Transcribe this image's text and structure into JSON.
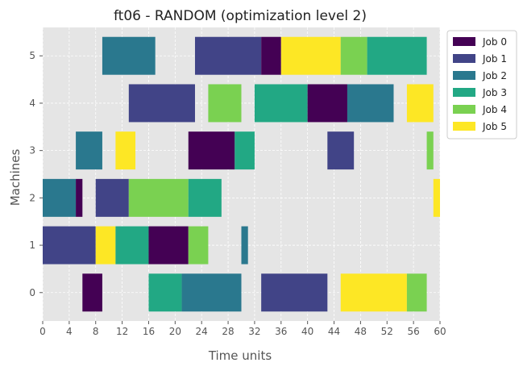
{
  "chart_data": {
    "type": "gantt",
    "title": "ft06 - RANDOM (optimization level 2)",
    "xlabel": "Time units",
    "ylabel": "Machines",
    "xlim": [
      0,
      60
    ],
    "ylim": [
      -0.6,
      5.6
    ],
    "xticks": [
      0,
      4,
      8,
      12,
      16,
      20,
      24,
      28,
      32,
      36,
      40,
      44,
      48,
      52,
      56,
      60
    ],
    "yticks": [
      0,
      1,
      2,
      3,
      4,
      5
    ],
    "grid": true,
    "legend_position": "outside-top-right",
    "jobs": [
      {
        "name": "Job 0",
        "color": "#440154"
      },
      {
        "name": "Job 1",
        "color": "#414487"
      },
      {
        "name": "Job 2",
        "color": "#2a788e"
      },
      {
        "name": "Job 3",
        "color": "#22a884"
      },
      {
        "name": "Job 4",
        "color": "#7ad151"
      },
      {
        "name": "Job 5",
        "color": "#fde725"
      }
    ],
    "tasks": [
      {
        "machine": 0,
        "job": 0,
        "start": 6,
        "end": 9
      },
      {
        "machine": 0,
        "job": 3,
        "start": 16,
        "end": 21
      },
      {
        "machine": 0,
        "job": 2,
        "start": 21,
        "end": 30
      },
      {
        "machine": 0,
        "job": 1,
        "start": 33,
        "end": 43
      },
      {
        "machine": 0,
        "job": 5,
        "start": 45,
        "end": 55
      },
      {
        "machine": 0,
        "job": 4,
        "start": 55,
        "end": 58
      },
      {
        "machine": 1,
        "job": 1,
        "start": 0,
        "end": 8
      },
      {
        "machine": 1,
        "job": 5,
        "start": 8,
        "end": 11
      },
      {
        "machine": 1,
        "job": 3,
        "start": 11,
        "end": 16
      },
      {
        "machine": 1,
        "job": 0,
        "start": 16,
        "end": 22
      },
      {
        "machine": 1,
        "job": 4,
        "start": 22,
        "end": 25
      },
      {
        "machine": 1,
        "job": 2,
        "start": 30,
        "end": 31
      },
      {
        "machine": 2,
        "job": 2,
        "start": 0,
        "end": 5
      },
      {
        "machine": 2,
        "job": 0,
        "start": 5,
        "end": 6
      },
      {
        "machine": 2,
        "job": 1,
        "start": 8,
        "end": 13
      },
      {
        "machine": 2,
        "job": 4,
        "start": 13,
        "end": 22
      },
      {
        "machine": 2,
        "job": 3,
        "start": 22,
        "end": 27
      },
      {
        "machine": 2,
        "job": 5,
        "start": 59,
        "end": 60
      },
      {
        "machine": 3,
        "job": 2,
        "start": 5,
        "end": 9
      },
      {
        "machine": 3,
        "job": 5,
        "start": 11,
        "end": 14
      },
      {
        "machine": 3,
        "job": 0,
        "start": 22,
        "end": 29
      },
      {
        "machine": 3,
        "job": 3,
        "start": 29,
        "end": 32
      },
      {
        "machine": 3,
        "job": 1,
        "start": 43,
        "end": 47
      },
      {
        "machine": 3,
        "job": 4,
        "start": 58,
        "end": 59
      },
      {
        "machine": 4,
        "job": 1,
        "start": 13,
        "end": 23
      },
      {
        "machine": 4,
        "job": 4,
        "start": 25,
        "end": 30
      },
      {
        "machine": 4,
        "job": 3,
        "start": 32,
        "end": 40
      },
      {
        "machine": 4,
        "job": 0,
        "start": 40,
        "end": 46
      },
      {
        "machine": 4,
        "job": 2,
        "start": 46,
        "end": 53
      },
      {
        "machine": 4,
        "job": 5,
        "start": 55,
        "end": 59
      },
      {
        "machine": 5,
        "job": 2,
        "start": 9,
        "end": 17
      },
      {
        "machine": 5,
        "job": 1,
        "start": 23,
        "end": 33
      },
      {
        "machine": 5,
        "job": 0,
        "start": 33,
        "end": 36
      },
      {
        "machine": 5,
        "job": 5,
        "start": 36,
        "end": 45
      },
      {
        "machine": 5,
        "job": 4,
        "start": 45,
        "end": 49
      },
      {
        "machine": 5,
        "job": 3,
        "start": 49,
        "end": 58
      }
    ]
  }
}
